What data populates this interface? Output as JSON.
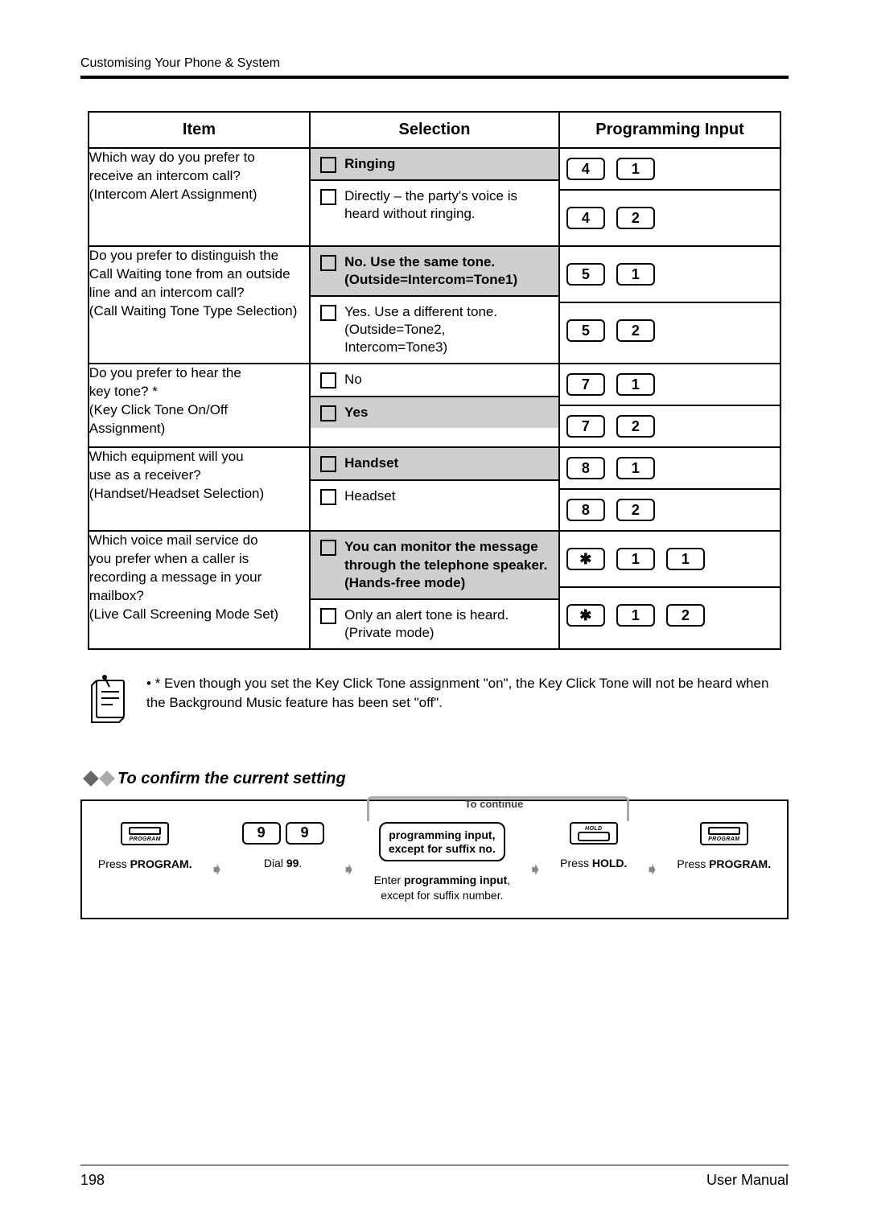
{
  "header": {
    "section": "Customising Your Phone & System"
  },
  "table": {
    "headers": {
      "item": "Item",
      "selection": "Selection",
      "prog": "Programming Input"
    },
    "rows": [
      {
        "item_lines": [
          "Which way do you prefer to",
          "receive an intercom call?",
          "(Intercom Alert Assignment)"
        ],
        "options": [
          {
            "hl": true,
            "bold": true,
            "text": "Ringing",
            "keys": [
              "4",
              "1"
            ]
          },
          {
            "hl": false,
            "bold": false,
            "text": "Directly – the party's voice is heard without ringing.",
            "keys": [
              "4",
              "2"
            ]
          }
        ]
      },
      {
        "item_lines": [
          "Do you prefer to distinguish the",
          "Call Waiting tone from an outside",
          "line and an intercom call?",
          "(Call Waiting Tone Type Selection)"
        ],
        "options": [
          {
            "hl": true,
            "bold": true,
            "text": "No.  Use the same tone.",
            "sub": "(Outside=Intercom=Tone1)",
            "keys": [
              "5",
              "1"
            ]
          },
          {
            "hl": false,
            "bold": false,
            "text": "Yes.  Use a different tone.",
            "sub": "(Outside=Tone2, Intercom=Tone3)",
            "keys": [
              "5",
              "2"
            ]
          }
        ]
      },
      {
        "item_lines": [
          "Do you prefer to hear the",
          "key tone? *",
          "(Key Click Tone On/Off",
          "Assignment)"
        ],
        "options": [
          {
            "hl": false,
            "bold": false,
            "text": "No",
            "keys": [
              "7",
              "1"
            ]
          },
          {
            "hl": true,
            "bold": true,
            "text": "Yes",
            "keys": [
              "7",
              "2"
            ]
          }
        ]
      },
      {
        "item_lines": [
          "Which equipment will you",
          "use as a receiver?",
          "(Handset/Headset Selection)"
        ],
        "options": [
          {
            "hl": true,
            "bold": true,
            "text": "Handset",
            "keys": [
              "8",
              "1"
            ]
          },
          {
            "hl": false,
            "bold": false,
            "text": "Headset",
            "keys": [
              "8",
              "2"
            ]
          }
        ]
      },
      {
        "item_lines": [
          "Which voice mail service do",
          "you prefer when a caller is",
          "recording a message in your",
          "mailbox?",
          "(Live Call Screening Mode Set)"
        ],
        "options": [
          {
            "hl": true,
            "bold": true,
            "text": "You can monitor the message through the telephone speaker. (Hands-free mode)",
            "keys": [
              "✱",
              "1",
              "1"
            ]
          },
          {
            "hl": false,
            "bold": false,
            "text": "Only an alert tone is heard.",
            "sub": "(Private mode)",
            "keys": [
              "✱",
              "1",
              "2"
            ]
          }
        ]
      }
    ]
  },
  "note": {
    "text": "* Even though you set the Key Click Tone assignment \"on\", the Key Click Tone will not be heard when the Background Music feature has been set \"off\"."
  },
  "subheading": "To confirm the current setting",
  "flow": {
    "continue_label": "To continue",
    "steps": {
      "s1_icon_label": "PROGRAM",
      "s1_caption_pre": "Press ",
      "s1_caption_bold": "PROGRAM.",
      "s2_keys": [
        "9",
        "9"
      ],
      "s2_caption_pre": "Dial ",
      "s2_caption_bold": "99",
      "s2_caption_post": ".",
      "s3_box_l1": "programming input,",
      "s3_box_l2": "except for suffix no.",
      "s3_cap_pre": "Enter ",
      "s3_cap_bold": "programming input",
      "s3_cap_post": ",",
      "s3_cap_line2": "except for suffix number.",
      "s4_icon_label": "HOLD",
      "s4_cap_pre": "Press ",
      "s4_cap_bold": "HOLD.",
      "s5_icon_label": "PROGRAM",
      "s5_cap_pre": "Press ",
      "s5_cap_bold": "PROGRAM."
    }
  },
  "footer": {
    "page": "198",
    "manual": "User Manual"
  },
  "colors": {
    "highlight": "#cfcfcf",
    "rule": "#000000",
    "arrow": "#888888"
  }
}
